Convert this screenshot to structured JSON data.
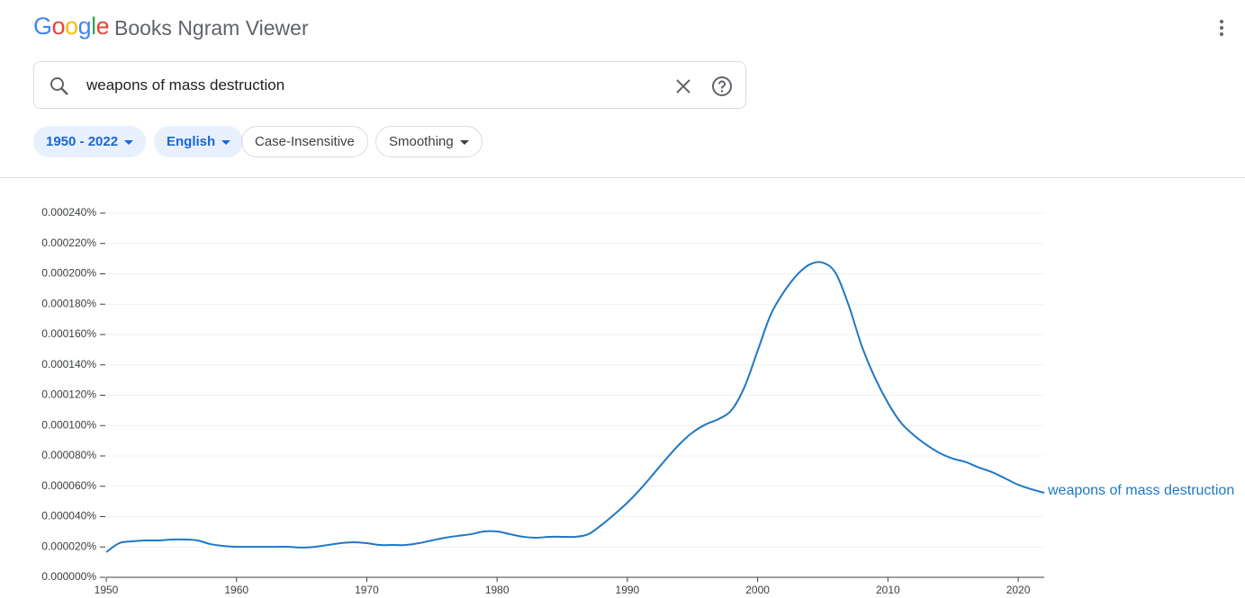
{
  "header": {
    "logo": "Google",
    "product": "Books Ngram Viewer"
  },
  "search": {
    "query": "weapons of mass destruction"
  },
  "filters": [
    "1950 - 2022",
    "English",
    "Case-Insensitive",
    "Smoothing"
  ],
  "chart_data": {
    "type": "line",
    "x": [
      1950,
      1951,
      1952,
      1953,
      1954,
      1955,
      1956,
      1957,
      1958,
      1959,
      1960,
      1961,
      1962,
      1963,
      1964,
      1965,
      1966,
      1967,
      1968,
      1969,
      1970,
      1971,
      1972,
      1973,
      1974,
      1975,
      1976,
      1977,
      1978,
      1979,
      1980,
      1981,
      1982,
      1983,
      1984,
      1985,
      1986,
      1987,
      1988,
      1989,
      1990,
      1991,
      1992,
      1993,
      1994,
      1995,
      1996,
      1997,
      1998,
      1999,
      2000,
      2001,
      2002,
      2003,
      2004,
      2005,
      2006,
      2007,
      2008,
      2009,
      2010,
      2011,
      2012,
      2013,
      2014,
      2015,
      2016,
      2017,
      2018,
      2019,
      2020,
      2021,
      2022
    ],
    "series": [
      {
        "name": "weapons of mass destruction",
        "color": "#1f78c5",
        "values": [
          1.66e-05,
          2.25e-05,
          2.37e-05,
          2.43e-05,
          2.43e-05,
          2.49e-05,
          2.49e-05,
          2.43e-05,
          2.19e-05,
          2.07e-05,
          2.01e-05,
          2.01e-05,
          2.01e-05,
          2.01e-05,
          2.01e-05,
          1.96e-05,
          2.01e-05,
          2.13e-05,
          2.25e-05,
          2.31e-05,
          2.25e-05,
          2.13e-05,
          2.13e-05,
          2.13e-05,
          2.25e-05,
          2.43e-05,
          2.61e-05,
          2.73e-05,
          2.84e-05,
          3.02e-05,
          3.02e-05,
          2.84e-05,
          2.67e-05,
          2.61e-05,
          2.67e-05,
          2.67e-05,
          2.67e-05,
          2.84e-05,
          3.44e-05,
          4.15e-05,
          4.92e-05,
          5.81e-05,
          6.81e-05,
          7.82e-05,
          8.77e-05,
          9.54e-05,
          0.0001007,
          0.0001043,
          0.0001102,
          0.0001256,
          0.0001493,
          0.000173,
          0.0001879,
          0.0001991,
          0.0002062,
          0.0002074,
          0.0002003,
          0.000179,
          0.0001523,
          0.0001316,
          0.000115,
          0.0001019,
          9.36e-05,
          8.71e-05,
          8.18e-05,
          7.82e-05,
          7.59e-05,
          7.23e-05,
          6.93e-05,
          6.52e-05,
          6.1e-05,
          5.81e-05,
          5.57e-05
        ]
      }
    ],
    "xlim": [
      1950,
      2022
    ],
    "xticks": [
      1950,
      1960,
      1970,
      1980,
      1990,
      2000,
      2010,
      2020
    ],
    "ylim": [
      0,
      0.00024
    ],
    "yticks": [
      {
        "value": 0,
        "label": "0.000000%"
      },
      {
        "value": 2e-05,
        "label": "0.000020%"
      },
      {
        "value": 4e-05,
        "label": "0.000040%"
      },
      {
        "value": 6e-05,
        "label": "0.000060%"
      },
      {
        "value": 8e-05,
        "label": "0.000080%"
      },
      {
        "value": 0.0001,
        "label": "0.000100%"
      },
      {
        "value": 0.00012,
        "label": "0.000120%"
      },
      {
        "value": 0.00014,
        "label": "0.000140%"
      },
      {
        "value": 0.00016,
        "label": "0.000160%"
      },
      {
        "value": 0.00018,
        "label": "0.000180%"
      },
      {
        "value": 0.0002,
        "label": "0.000200%"
      },
      {
        "value": 0.00022,
        "label": "0.000220%"
      },
      {
        "value": 0.00024,
        "label": "0.000240%"
      }
    ],
    "grid": true
  }
}
